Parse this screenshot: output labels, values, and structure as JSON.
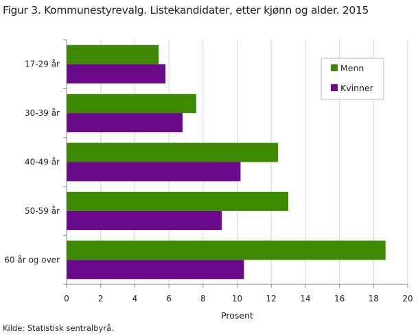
{
  "title": "Figur 3. Kommunestyrevalg. Listekandidater, etter kjønn og alder. 2015",
  "source": "Kilde: Statistisk sentralbyrå.",
  "colors": {
    "menn": "#3d8a02",
    "kvinner": "#6a0a8a",
    "grid": "#d4d4d4",
    "axis": "#888888"
  },
  "chart_data": {
    "type": "bar",
    "orientation": "horizontal",
    "categories": [
      "17-29 år",
      "30-39 år",
      "40-49 år",
      "50-59 år",
      "60 år og over"
    ],
    "series": [
      {
        "name": "Menn",
        "values": [
          5.4,
          7.6,
          12.4,
          13.0,
          18.7
        ]
      },
      {
        "name": "Kvinner",
        "values": [
          5.8,
          6.8,
          10.2,
          9.1,
          10.4
        ]
      }
    ],
    "xlabel": "Prosent",
    "ylabel": "",
    "xlim": [
      0,
      20
    ],
    "xticks": [
      "0",
      "2",
      "4",
      "6",
      "8",
      "10",
      "12",
      "14",
      "16",
      "18",
      "20"
    ],
    "grid": true,
    "legend_position": "top-right"
  }
}
